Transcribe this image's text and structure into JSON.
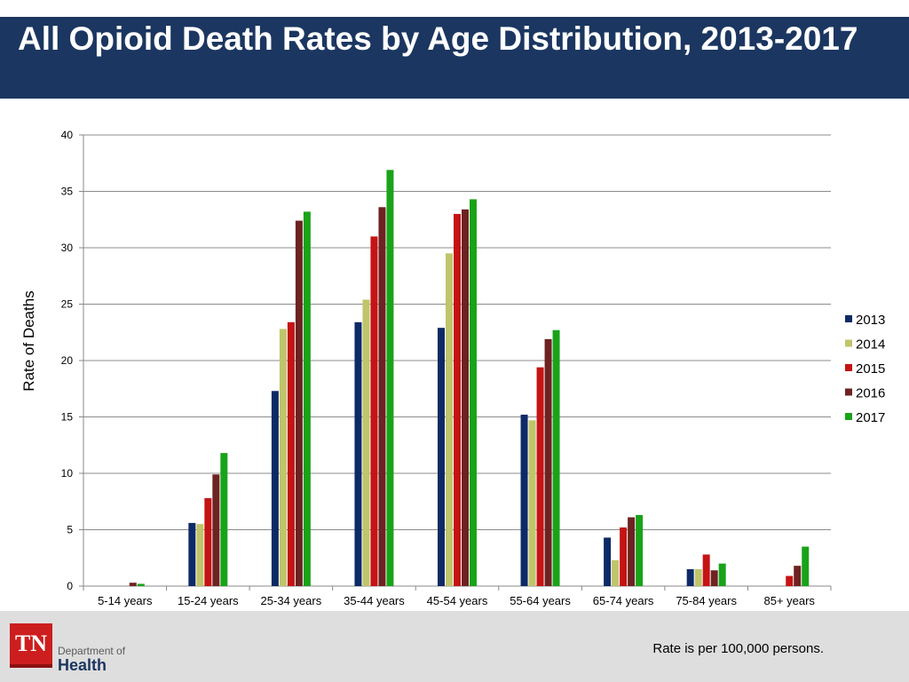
{
  "header": {
    "title": "All Opioid Death Rates by Age Distribution, 2013-2017"
  },
  "footer": {
    "logo_text": "TN",
    "department_label": "Department of",
    "health_label": "Health",
    "note": "Rate is per 100,000 persons."
  },
  "colors": {
    "header_bg": "#1b3660",
    "s2013": "#0e2a66",
    "s2014": "#c0c46a",
    "s2015": "#c41414",
    "s2016": "#6e2222",
    "s2017": "#19a319"
  },
  "chart_data": {
    "type": "bar",
    "title": "",
    "xlabel": "",
    "ylabel": "Rate of Deaths",
    "ylim": [
      0,
      40
    ],
    "yticks": [
      0,
      5,
      10,
      15,
      20,
      25,
      30,
      35,
      40
    ],
    "grid": true,
    "legend_position": "right",
    "categories": [
      "5-14 years",
      "15-24 years",
      "25-34 years",
      "35-44 years",
      "45-54 years",
      "55-64 years",
      "65-74 years",
      "75-84 years",
      "85+ years"
    ],
    "series": [
      {
        "name": "2013",
        "color": "#0e2a66",
        "values": [
          null,
          5.6,
          17.3,
          23.4,
          22.9,
          15.2,
          4.3,
          1.5,
          null
        ]
      },
      {
        "name": "2014",
        "color": "#c0c46a",
        "values": [
          null,
          5.5,
          22.8,
          25.4,
          29.5,
          14.7,
          2.3,
          1.5,
          null
        ]
      },
      {
        "name": "2015",
        "color": "#c41414",
        "values": [
          null,
          7.8,
          23.4,
          31.0,
          33.0,
          19.4,
          5.2,
          2.8,
          0.9
        ]
      },
      {
        "name": "2016",
        "color": "#6e2222",
        "values": [
          0.3,
          9.9,
          32.4,
          33.6,
          33.4,
          21.9,
          6.1,
          1.4,
          1.8
        ]
      },
      {
        "name": "2017",
        "color": "#19a319",
        "values": [
          0.2,
          11.8,
          33.2,
          36.9,
          34.3,
          22.7,
          6.3,
          2.0,
          3.5
        ]
      }
    ]
  }
}
